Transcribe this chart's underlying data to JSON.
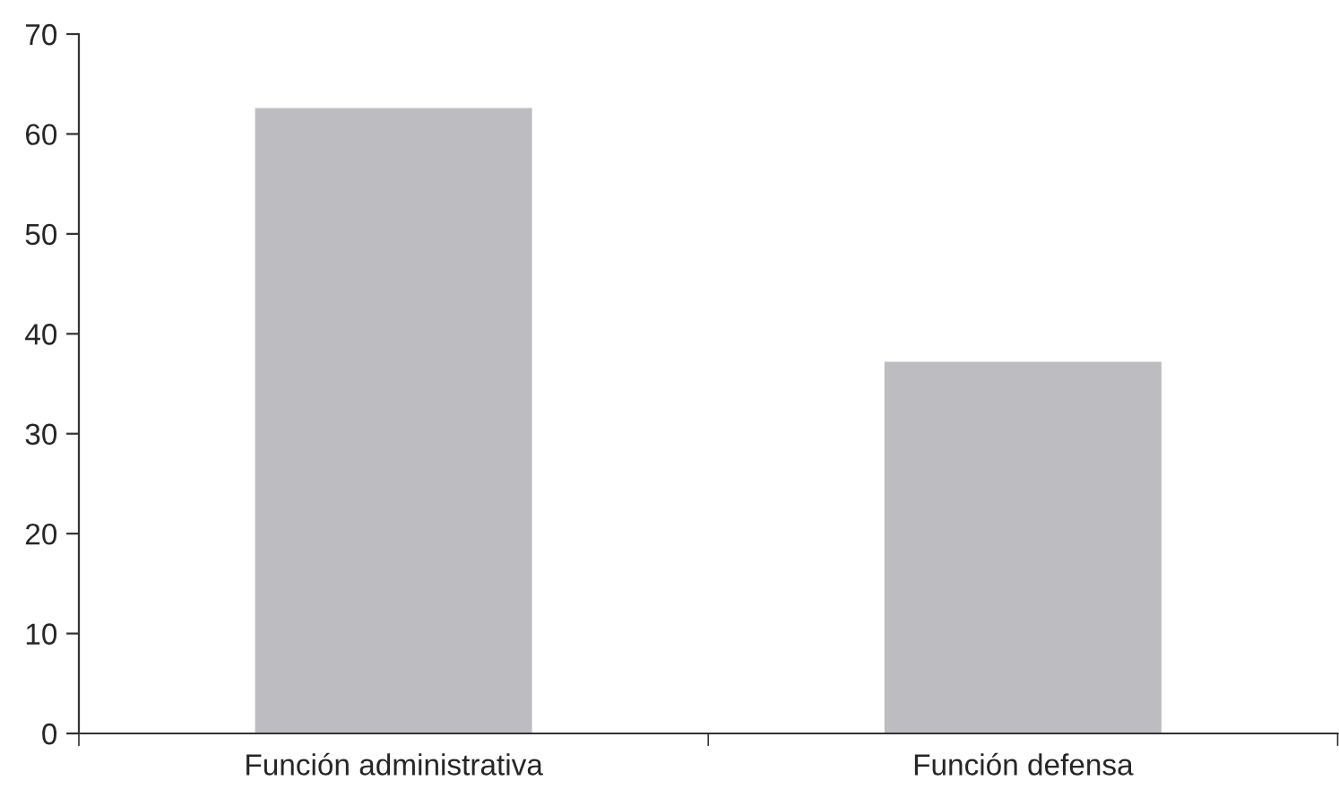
{
  "chart_data": {
    "type": "bar",
    "categories": [
      "Función administrativa",
      "Función defensa"
    ],
    "values": [
      62.6,
      37.2
    ],
    "color": "#bdbdc1",
    "ylim": [
      0,
      70
    ],
    "yticks": [
      0,
      10,
      20,
      30,
      40,
      50,
      60,
      70
    ],
    "grid": false
  }
}
